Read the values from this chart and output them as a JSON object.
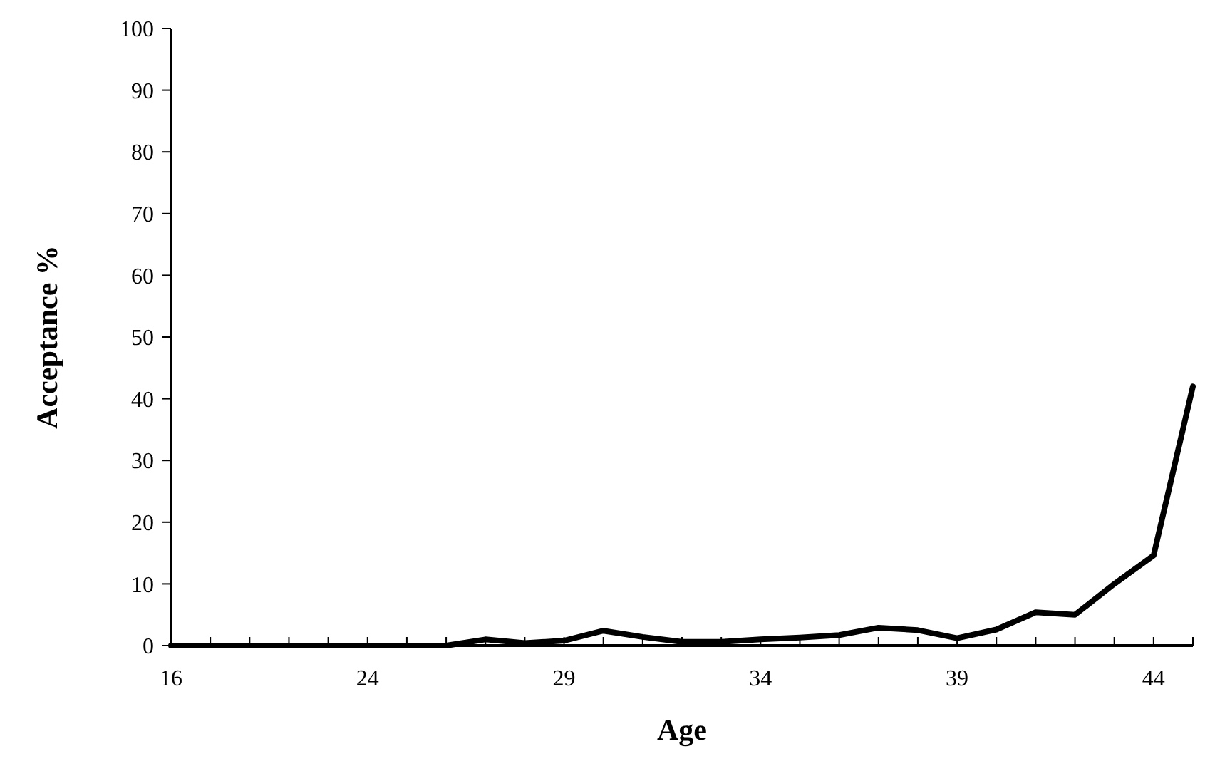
{
  "chart_data": {
    "type": "line",
    "xlabel": "Age",
    "ylabel": "Acceptance %",
    "categories": [
      "16",
      null,
      null,
      null,
      null,
      "24",
      null,
      null,
      null,
      null,
      "29",
      null,
      null,
      null,
      null,
      "34",
      null,
      null,
      null,
      null,
      "39",
      null,
      null,
      null,
      null,
      "44",
      null
    ],
    "series": [
      {
        "color": "#000000",
        "values": [
          0,
          0,
          0,
          0,
          0,
          0,
          0,
          0,
          1.0,
          0.4,
          0.8,
          2.4,
          1.4,
          0.6,
          0.6,
          1.0,
          1.3,
          1.7,
          2.9,
          2.5,
          1.2,
          2.6,
          5.4,
          5.0,
          10,
          14.6,
          42
        ]
      }
    ],
    "ylim": [
      0,
      100
    ],
    "yticks": [
      0,
      10,
      20,
      30,
      40,
      50,
      60,
      70,
      80,
      90,
      100
    ],
    "marker": "none",
    "line_style": "solid"
  }
}
